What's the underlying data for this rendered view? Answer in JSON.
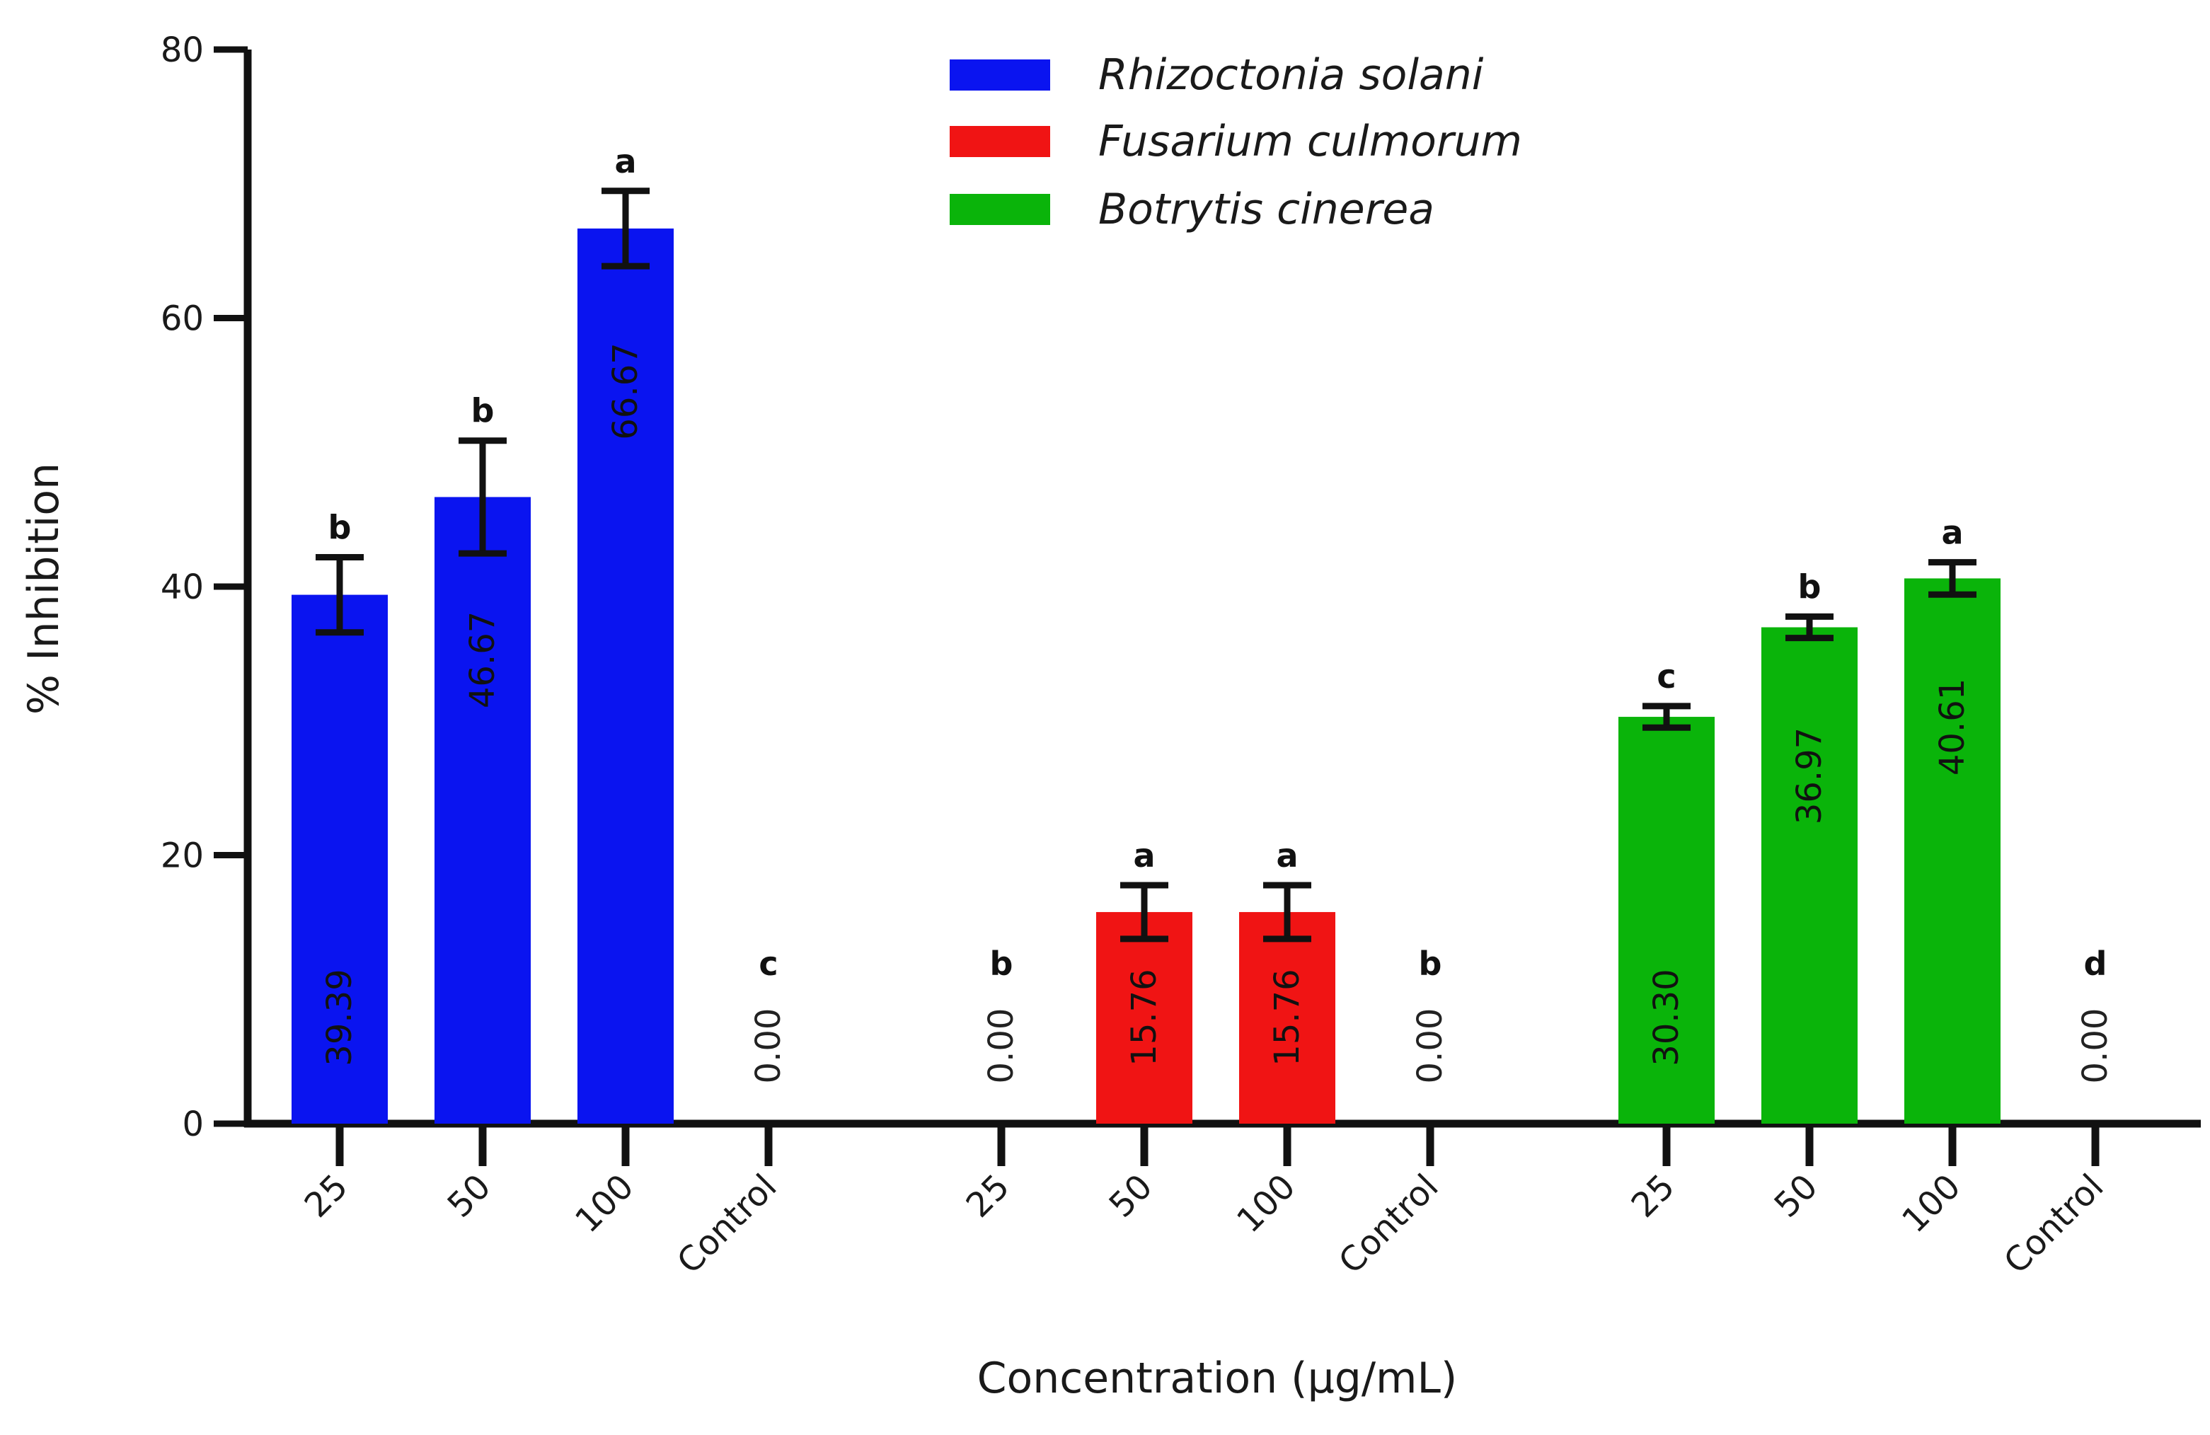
{
  "chart_data": {
    "type": "bar",
    "title": "",
    "xlabel": "Concentration (μg/mL)",
    "ylabel": "% Inhibition",
    "ylim": [
      0,
      80
    ],
    "yticks": [
      0,
      20,
      40,
      60,
      80
    ],
    "categories": [
      "25",
      "50",
      "100",
      "Control"
    ],
    "series": [
      {
        "name": "Rhizoctonia solani",
        "color": "#0a14f0",
        "values": [
          39.39,
          46.67,
          66.67,
          0.0
        ],
        "value_labels": [
          "39.39",
          "46.67",
          "66.67",
          "0.00"
        ],
        "errors": [
          2.8,
          4.2,
          2.8,
          0
        ],
        "letters": [
          "b",
          "b",
          "a",
          "c"
        ]
      },
      {
        "name": "Fusarium culmorum",
        "color": "#f01414",
        "values": [
          0.0,
          15.76,
          15.76,
          0.0
        ],
        "value_labels": [
          "0.00",
          "15.76",
          "15.76",
          "0.00"
        ],
        "errors": [
          0,
          2.0,
          2.0,
          0
        ],
        "letters": [
          "b",
          "a",
          "a",
          "b"
        ]
      },
      {
        "name": "Botrytis cinerea",
        "color": "#0ab40a",
        "values": [
          30.3,
          36.97,
          40.61,
          0.0
        ],
        "value_labels": [
          "30.30",
          "36.97",
          "40.61",
          "0.00"
        ],
        "errors": [
          0.8,
          0.8,
          1.2,
          0
        ],
        "letters": [
          "c",
          "b",
          "a",
          "d"
        ]
      }
    ],
    "legend": "top-center"
  }
}
